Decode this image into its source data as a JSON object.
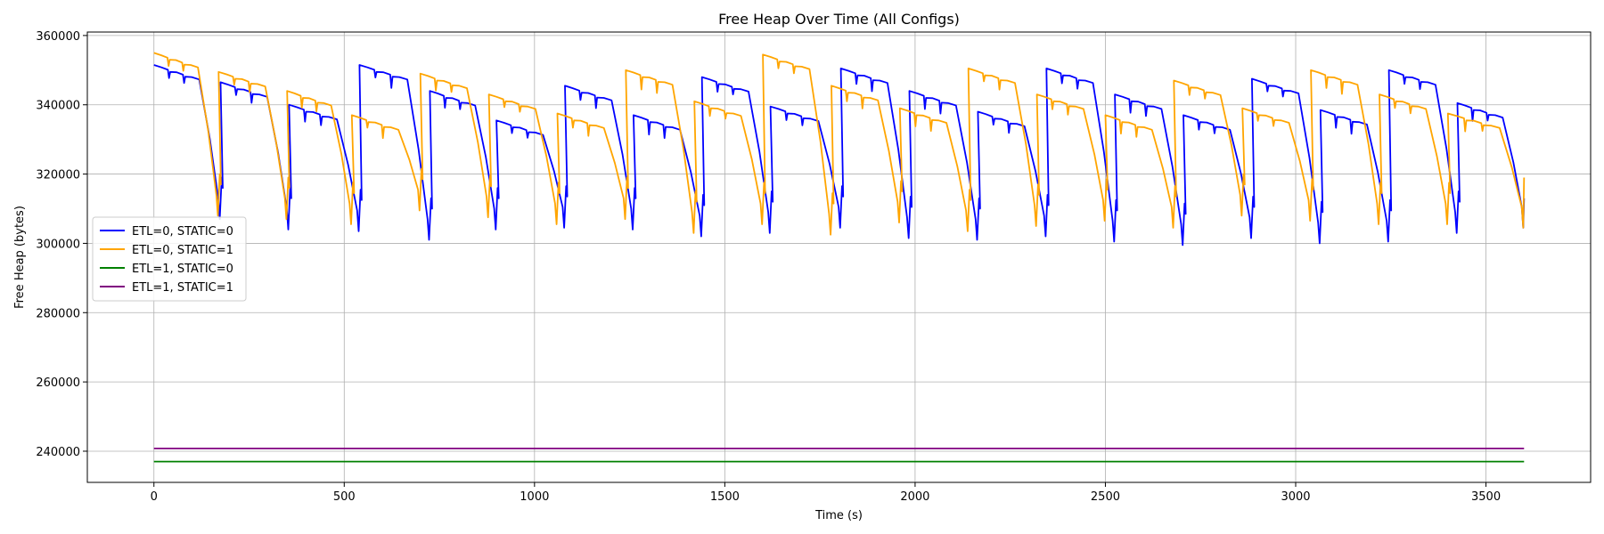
{
  "chart_data": {
    "type": "line",
    "title": "Free Heap Over Time (All Configs)",
    "xlabel": "Time (s)",
    "ylabel": "Free Heap (bytes)",
    "xlim": [
      -175,
      3775
    ],
    "ylim": [
      231000,
      361000
    ],
    "xticks": [
      0,
      500,
      1000,
      1500,
      2000,
      2500,
      3000,
      3500
    ],
    "yticks": [
      240000,
      260000,
      280000,
      300000,
      320000,
      340000,
      360000
    ],
    "grid": true,
    "legend_position": "center-left",
    "series": [
      {
        "name": "ETL=0, STATIC=0",
        "color": "#0000ff",
        "cycles": [
          {
            "start": 0,
            "end": 175,
            "top": 351500,
            "bottom": 307000
          },
          {
            "start": 175,
            "end": 355,
            "top": 346500,
            "bottom": 304000
          },
          {
            "start": 355,
            "end": 540,
            "top": 340000,
            "bottom": 303500
          },
          {
            "start": 540,
            "end": 725,
            "top": 351500,
            "bottom": 301000
          },
          {
            "start": 725,
            "end": 900,
            "top": 344000,
            "bottom": 304000
          },
          {
            "start": 900,
            "end": 1080,
            "top": 335500,
            "bottom": 304500
          },
          {
            "start": 1080,
            "end": 1260,
            "top": 345500,
            "bottom": 304000
          },
          {
            "start": 1260,
            "end": 1440,
            "top": 337000,
            "bottom": 302000
          },
          {
            "start": 1440,
            "end": 1620,
            "top": 348000,
            "bottom": 303000
          },
          {
            "start": 1620,
            "end": 1805,
            "top": 339500,
            "bottom": 304500
          },
          {
            "start": 1805,
            "end": 1985,
            "top": 350500,
            "bottom": 301500
          },
          {
            "start": 1985,
            "end": 2165,
            "top": 344000,
            "bottom": 301000
          },
          {
            "start": 2165,
            "end": 2345,
            "top": 338000,
            "bottom": 302000
          },
          {
            "start": 2345,
            "end": 2525,
            "top": 350500,
            "bottom": 300500
          },
          {
            "start": 2525,
            "end": 2705,
            "top": 343000,
            "bottom": 299500
          },
          {
            "start": 2705,
            "end": 2885,
            "top": 337000,
            "bottom": 301500
          },
          {
            "start": 2885,
            "end": 3065,
            "top": 347500,
            "bottom": 300000
          },
          {
            "start": 3065,
            "end": 3245,
            "top": 338500,
            "bottom": 300500
          },
          {
            "start": 3245,
            "end": 3425,
            "top": 350000,
            "bottom": 303000
          },
          {
            "start": 3425,
            "end": 3600,
            "top": 340500,
            "bottom": 304500
          }
        ],
        "final": 313000
      },
      {
        "name": "ETL=0, STATIC=1",
        "color": "#ffa500",
        "cycles": [
          {
            "start": 0,
            "end": 170,
            "top": 355000,
            "bottom": 308000
          },
          {
            "start": 170,
            "end": 350,
            "top": 349500,
            "bottom": 307000
          },
          {
            "start": 350,
            "end": 520,
            "top": 344000,
            "bottom": 305500
          },
          {
            "start": 520,
            "end": 700,
            "top": 337000,
            "bottom": 309500
          },
          {
            "start": 700,
            "end": 880,
            "top": 349000,
            "bottom": 307500
          },
          {
            "start": 880,
            "end": 1060,
            "top": 343000,
            "bottom": 305500
          },
          {
            "start": 1060,
            "end": 1240,
            "top": 337500,
            "bottom": 307000
          },
          {
            "start": 1240,
            "end": 1420,
            "top": 350000,
            "bottom": 303000
          },
          {
            "start": 1420,
            "end": 1600,
            "top": 341000,
            "bottom": 305500
          },
          {
            "start": 1600,
            "end": 1780,
            "top": 354500,
            "bottom": 302500
          },
          {
            "start": 1780,
            "end": 1960,
            "top": 345500,
            "bottom": 306000
          },
          {
            "start": 1960,
            "end": 2140,
            "top": 339000,
            "bottom": 303500
          },
          {
            "start": 2140,
            "end": 2320,
            "top": 350500,
            "bottom": 305000
          },
          {
            "start": 2320,
            "end": 2500,
            "top": 343000,
            "bottom": 306500
          },
          {
            "start": 2500,
            "end": 2680,
            "top": 337000,
            "bottom": 304500
          },
          {
            "start": 2680,
            "end": 2860,
            "top": 347000,
            "bottom": 308000
          },
          {
            "start": 2860,
            "end": 3040,
            "top": 339000,
            "bottom": 306500
          },
          {
            "start": 3040,
            "end": 3220,
            "top": 350000,
            "bottom": 305500
          },
          {
            "start": 3220,
            "end": 3400,
            "top": 343000,
            "bottom": 305500
          },
          {
            "start": 3400,
            "end": 3600,
            "top": 337500,
            "bottom": 304500
          }
        ],
        "final": 319000
      },
      {
        "name": "ETL=1, STATIC=0",
        "color": "#008000",
        "x": [
          0,
          3600
        ],
        "y": [
          237000,
          237000
        ]
      },
      {
        "name": "ETL=1, STATIC=1",
        "color": "#800080",
        "x": [
          0,
          3600
        ],
        "y": [
          240800,
          240800
        ]
      }
    ]
  }
}
